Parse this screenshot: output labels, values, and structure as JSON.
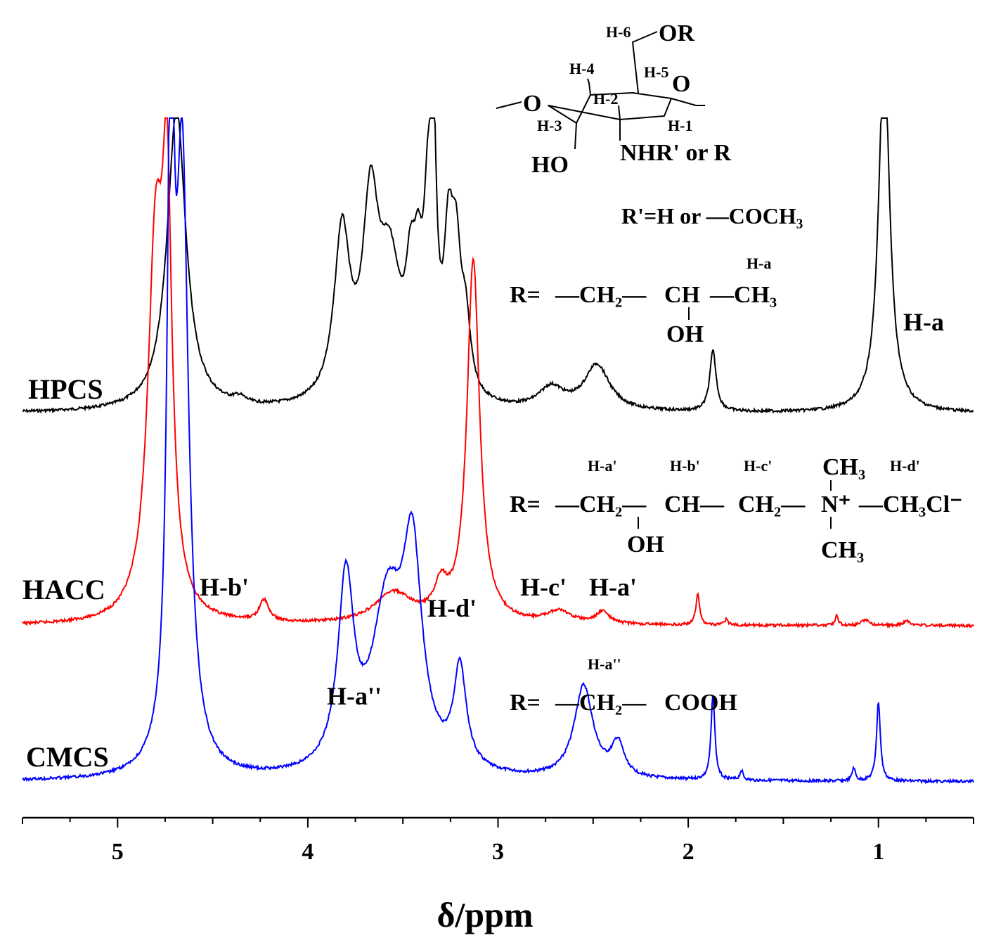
{
  "chart_data": {
    "type": "line",
    "xlabel": "δ/ppm",
    "xlim": [
      5.5,
      0.5
    ],
    "x_reversed": true,
    "ticks": [
      5,
      4,
      3,
      2,
      1
    ],
    "series": [
      {
        "name": "HPCS",
        "color": "#000000",
        "peaks": [
          [
            4.69,
            1.0,
            0.06
          ],
          [
            4.36,
            0.02,
            0.04
          ],
          [
            3.82,
            0.55,
            0.05
          ],
          [
            3.67,
            0.6,
            0.05
          ],
          [
            3.57,
            0.42,
            0.07
          ],
          [
            3.46,
            0.28,
            0.03
          ],
          [
            3.42,
            0.3,
            0.03
          ],
          [
            3.37,
            0.45,
            0.025
          ],
          [
            3.34,
            0.75,
            0.02
          ],
          [
            3.26,
            0.45,
            0.03
          ],
          [
            3.22,
            0.4,
            0.03
          ],
          [
            3.17,
            0.22,
            0.03
          ],
          [
            2.72,
            0.07,
            0.08
          ],
          [
            2.48,
            0.15,
            0.08
          ],
          [
            1.87,
            0.2,
            0.02
          ],
          [
            0.97,
            1.2,
            0.035
          ]
        ]
      },
      {
        "name": "HACC",
        "color": "#ff0000",
        "peaks": [
          [
            4.8,
            1.2,
            0.05
          ],
          [
            4.74,
            1.2,
            0.03
          ],
          [
            4.23,
            0.07,
            0.03
          ],
          [
            3.55,
            0.1,
            0.12
          ],
          [
            3.3,
            0.1,
            0.04
          ],
          [
            3.13,
            1.2,
            0.04
          ],
          [
            2.68,
            0.04,
            0.08
          ],
          [
            2.45,
            0.04,
            0.04
          ],
          [
            1.95,
            0.1,
            0.012
          ],
          [
            1.8,
            0.02,
            0.01
          ],
          [
            1.22,
            0.03,
            0.01
          ],
          [
            1.07,
            0.02,
            0.02
          ],
          [
            0.85,
            0.015,
            0.02
          ]
        ]
      },
      {
        "name": "CMCS",
        "color": "#0000ff",
        "peaks": [
          [
            4.72,
            1.0,
            0.02
          ],
          [
            4.66,
            0.9,
            0.04
          ],
          [
            3.8,
            0.28,
            0.05
          ],
          [
            3.58,
            0.25,
            0.1
          ],
          [
            3.45,
            0.3,
            0.06
          ],
          [
            3.2,
            0.15,
            0.04
          ],
          [
            2.55,
            0.14,
            0.06
          ],
          [
            2.37,
            0.05,
            0.04
          ],
          [
            1.87,
            0.13,
            0.012
          ],
          [
            1.72,
            0.015,
            0.01
          ],
          [
            1.13,
            0.02,
            0.01
          ],
          [
            1.0,
            0.12,
            0.012
          ]
        ]
      }
    ],
    "peak_labels": [
      {
        "text": "H-a",
        "series": "HPCS",
        "ppm": 0.97
      },
      {
        "text": "H-b'",
        "series": "HACC",
        "ppm": 4.23
      },
      {
        "text": "H-d'",
        "series": "HACC",
        "ppm": 3.13
      },
      {
        "text": "H-c'",
        "series": "HACC",
        "ppm": 2.68
      },
      {
        "text": "H-a'",
        "series": "HACC",
        "ppm": 2.45
      },
      {
        "text": "H-a''",
        "series": "CMCS",
        "ppm": 3.8
      }
    ]
  },
  "structure": {
    "h6": "H-6",
    "or": "OR",
    "h4": "H-4",
    "h5": "H-5",
    "o_ring": "O",
    "o_link": "O",
    "h2": "H-2",
    "h3": "H-3",
    "h1": "H-1",
    "ho": "HO",
    "nhr": "NHR' or R",
    "rprime": "R'=H or —COCH₃"
  },
  "hpcs_r": {
    "r": "R=",
    "ch2": "—CH₂—",
    "ch": "CH",
    "ch3": "—CH₃",
    "oh": "OH",
    "ha": "H-a"
  },
  "hacc_r": {
    "r": "R=",
    "ch2a": "—CH₂—",
    "ch": "CH—",
    "ch2b": "CH₂—",
    "n": "N⁺",
    "ch3cl": "—CH₃Cl⁻",
    "ch3top": "CH₃",
    "ch3bot": "CH₃",
    "oh": "OH",
    "ha": "H-a'",
    "hb": "H-b'",
    "hc": "H-c'",
    "hd": "H-d'"
  },
  "cmcs_r": {
    "r": "R=",
    "ch2": "—CH₂—",
    "cooh": "COOH",
    "ha": "H-a''"
  }
}
